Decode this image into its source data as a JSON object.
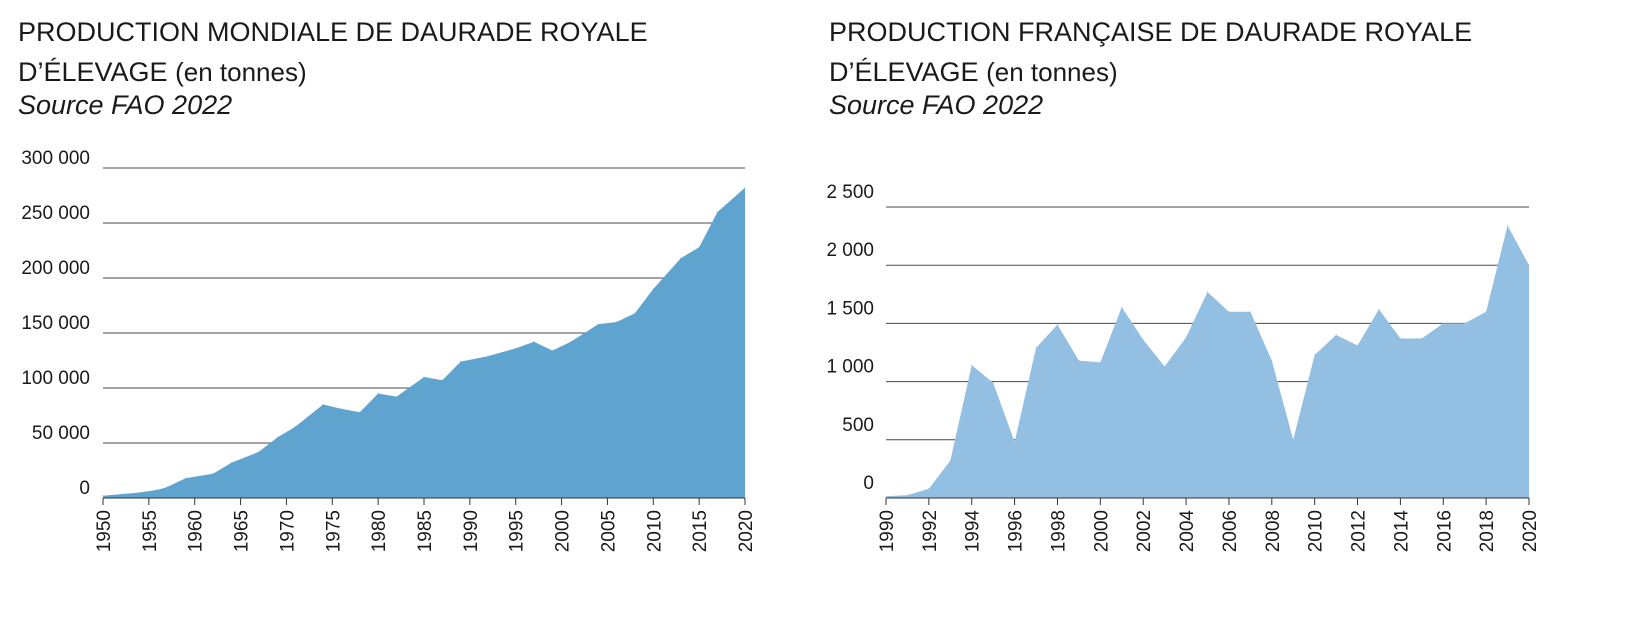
{
  "chart_data": [
    {
      "type": "area",
      "title_line1": "PRODUCTION MONDIALE DE DAURADE ROYALE",
      "title_line2": "D’ÉLEVAGE",
      "title_unit": "(en tonnes)",
      "source": "Source FAO 2022",
      "color": "#5ea4cf",
      "ylim": [
        0,
        300000
      ],
      "yticks": [
        0,
        50000,
        100000,
        150000,
        200000,
        250000,
        300000
      ],
      "ytick_labels": [
        "0",
        "50 000",
        "100 000",
        "150 000",
        "200 000",
        "250 000",
        "300 000"
      ],
      "xlim": [
        1950,
        2020
      ],
      "xticks": [
        1950,
        1955,
        1960,
        1965,
        1970,
        1975,
        1980,
        1985,
        1990,
        1995,
        2000,
        2005,
        2010,
        2015,
        2020
      ],
      "grid": true,
      "x": [
        1950,
        1952,
        1954,
        1956,
        1957,
        1959,
        1962,
        1964,
        1967,
        1969,
        1971,
        1974,
        1976,
        1978,
        1980,
        1982,
        1985,
        1987,
        1989,
        1992,
        1995,
        1997,
        1999,
        2001,
        2004,
        2006,
        2008,
        2010,
        2013,
        2015,
        2017,
        2020
      ],
      "values": [
        2000,
        3500,
        5000,
        7500,
        10000,
        18000,
        22000,
        32000,
        42000,
        55000,
        65000,
        85000,
        81000,
        78000,
        95000,
        92000,
        110000,
        107000,
        124000,
        129000,
        136000,
        142000,
        134000,
        142000,
        158000,
        160000,
        168000,
        190000,
        218000,
        228000,
        260000,
        282000
      ]
    },
    {
      "type": "area",
      "title_line1": "PRODUCTION FRANÇAISE DE DAURADE ROYALE",
      "title_line2": "D’ÉLEVAGE",
      "title_unit": "(en tonnes)",
      "source": "Source FAO 2022",
      "color": "#92bfe2",
      "ylim": [
        0,
        2500
      ],
      "yticks": [
        0,
        500,
        1000,
        1500,
        2000,
        2500
      ],
      "ytick_labels": [
        "0",
        "500",
        "1 000",
        "1 500",
        "2 000",
        "2 500"
      ],
      "xlim": [
        1990,
        2020
      ],
      "xticks": [
        1990,
        1992,
        1994,
        1996,
        1998,
        2000,
        2002,
        2004,
        2006,
        2008,
        2010,
        2012,
        2014,
        2016,
        2018,
        2020
      ],
      "grid": true,
      "x": [
        1990,
        1991,
        1992,
        1993,
        1994,
        1995,
        1996,
        1997,
        1998,
        1999,
        2000,
        2001,
        2002,
        2003,
        2004,
        2005,
        2006,
        2007,
        2008,
        2009,
        2010,
        2011,
        2012,
        2013,
        2014,
        2015,
        2016,
        2017,
        2018,
        2019,
        2020
      ],
      "values": [
        15,
        25,
        80,
        320,
        1140,
        990,
        480,
        1290,
        1490,
        1180,
        1165,
        1640,
        1360,
        1130,
        1380,
        1770,
        1600,
        1600,
        1180,
        500,
        1230,
        1400,
        1310,
        1620,
        1370,
        1370,
        1500,
        1500,
        1600,
        2340,
        2000
      ]
    }
  ]
}
